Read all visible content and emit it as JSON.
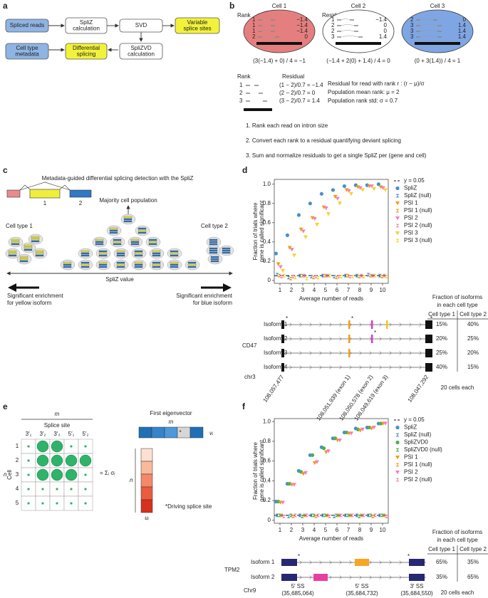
{
  "panel_a": {
    "label": "a",
    "boxes": [
      {
        "lines": [
          "Spliced reads"
        ]
      },
      {
        "lines": [
          "SpliZ",
          "calculation"
        ]
      },
      {
        "lines": [
          "SVD"
        ]
      },
      {
        "lines": [
          "Variable",
          "splice sites"
        ]
      },
      {
        "lines": [
          "Cell type",
          "metadata"
        ]
      },
      {
        "lines": [
          "Differential",
          "splicing"
        ]
      },
      {
        "lines": [
          "SpliZVD",
          "calculation"
        ]
      }
    ]
  },
  "panel_b": {
    "label": "b",
    "rank_heading": "Rank",
    "residual_heading": "Residual",
    "cells": [
      {
        "name": "Cell 1",
        "ranks": [
          1,
          1,
          1,
          2
        ],
        "residuals": [
          "−1.4",
          "−1.4",
          "−1.4",
          "0"
        ],
        "formula": "(3(−1.4) + 0) / 4 = −1"
      },
      {
        "name": "Cell 2",
        "ranks": [
          1,
          2,
          2,
          3
        ],
        "residuals": [
          "−1.4",
          "0",
          "0",
          "1.4"
        ],
        "formula": "(−1.4 + 2(0) + 1.4) / 4 = 0"
      },
      {
        "name": "Cell 3",
        "ranks": [
          2,
          3,
          3,
          3
        ],
        "residuals": [
          "0",
          "1.4",
          "1.4",
          "1.4"
        ],
        "formula": "(0 + 3(1.4)) / 4 = 1"
      }
    ],
    "example": {
      "rank_heading": "Rank",
      "residual_heading": "Residual",
      "ranks": [
        1,
        2,
        3
      ],
      "residuals": [
        "(1 − 2)/0.7 = −1.4",
        "(2 − 2)/0.7 = 0",
        "(3 − 2)/0.7 = 1.4"
      ],
      "notes": [
        "Residual for read with rank r : (r − μ)/σ",
        "Population mean rank: μ = 2",
        "Population rank std: σ = 0.7"
      ]
    },
    "steps": [
      "1. Rank each read on intron size",
      "2. Convert each rank to a residual quantifying deviant splicing",
      "3. Sum and normalize residuals to get a single SpliZ per (gene and cell)"
    ]
  },
  "panel_c": {
    "label": "c",
    "title": "Metadata-guided differential splicing detection with the SpliZ",
    "exon_labels": [
      "1",
      "2"
    ],
    "majority": "Majority cell population",
    "cell_type_1": "Cell type 1",
    "cell_type_2": "Cell type 2",
    "axis": "SpliZ value",
    "left_note": [
      "Significant enrichment",
      "for yellow isoform"
    ],
    "right_note": [
      "Significant enrichment",
      "for blue isoform"
    ]
  },
  "chart_data": [
    {
      "type": "scatter",
      "label": "d",
      "xlabel": "Average number of reads",
      "ylabel": [
        "Fraction of trials where",
        "gene is called significant"
      ],
      "x": [
        1,
        2,
        3,
        4,
        5,
        6,
        7,
        8,
        9,
        10
      ],
      "xlim": [
        0.5,
        10.5
      ],
      "xticks": [
        1,
        2,
        3,
        4,
        5,
        6,
        7,
        8,
        9,
        10
      ],
      "ylim": [
        -0.03,
        1.05
      ],
      "yticks": [
        0,
        0.2,
        0.4,
        0.6,
        0.8,
        {
          "value": 1,
          "label": "1.0"
        }
      ],
      "hline": {
        "value": 0.05,
        "label": "y = 0.05"
      },
      "legend": "right",
      "series": [
        {
          "name": "SpliZ",
          "color": "#4a8fcb",
          "marker": "circle",
          "values": [
            0.28,
            0.47,
            0.68,
            0.8,
            0.9,
            0.94,
            0.98,
            0.99,
            0.99,
            1.0
          ]
        },
        {
          "name": "SpliZ (null)",
          "color": "#4a8fcb",
          "marker": "x",
          "values": [
            0.06,
            0.03,
            0.05,
            0.04,
            0.05,
            0.04,
            0.05,
            0.05,
            0.06,
            0.05
          ]
        },
        {
          "name": "PSI 1",
          "color": "#f39c12",
          "marker": "triangle",
          "values": [
            0.17,
            0.34,
            0.53,
            0.65,
            0.76,
            0.87,
            0.94,
            0.97,
            0.98,
            0.97
          ]
        },
        {
          "name": "PSI 1 (null)",
          "color": "#f39c12",
          "marker": "x",
          "values": [
            0.05,
            0.02,
            0.05,
            0.03,
            0.05,
            0.03,
            0.05,
            0.04,
            0.05,
            0.04
          ]
        },
        {
          "name": "PSI 2",
          "color": "#f27fbf",
          "marker": "triangle",
          "values": [
            0.14,
            0.32,
            0.51,
            0.64,
            0.75,
            0.85,
            0.93,
            0.96,
            0.98,
            0.96
          ]
        },
        {
          "name": "PSI 2 (null)",
          "color": "#f27fbf",
          "marker": "x",
          "values": [
            0.04,
            0.04,
            0.05,
            0.04,
            0.05,
            0.04,
            0.04,
            0.05,
            0.05,
            0.05
          ]
        },
        {
          "name": "PSI 3",
          "color": "#f5d327",
          "marker": "triangle",
          "values": [
            0.1,
            0.26,
            0.45,
            0.58,
            0.69,
            0.8,
            0.9,
            0.94,
            0.95,
            0.94
          ]
        },
        {
          "name": "PSI 3 (null)",
          "color": "#f5d327",
          "marker": "x",
          "values": [
            0.05,
            0.03,
            0.02,
            0.03,
            0.05,
            0.04,
            0.04,
            0.04,
            0.05,
            0.04
          ]
        }
      ]
    },
    {
      "type": "scatter",
      "label": "f",
      "xlabel": "Average number of reads",
      "ylabel": [
        "Fraction of trials where",
        "gene is called significant"
      ],
      "x": [
        1,
        2,
        3,
        4,
        5,
        6,
        7,
        8,
        9,
        10
      ],
      "xlim": [
        0.5,
        10.5
      ],
      "xticks": [
        1,
        2,
        3,
        4,
        5,
        6,
        7,
        8,
        9,
        10
      ],
      "ylim": [
        -0.03,
        1.03
      ],
      "yticks": [
        0,
        0.2,
        0.4,
        0.6,
        0.8,
        {
          "value": 1,
          "label": "1.0"
        }
      ],
      "hline": {
        "value": 0.05,
        "label": "y = 0.05"
      },
      "legend": "right",
      "series": [
        {
          "name": "SpliZ",
          "color": "#4a8fcb",
          "marker": "circle",
          "values": [
            0.19,
            0.37,
            0.5,
            0.66,
            0.74,
            0.83,
            0.89,
            0.93,
            0.94,
            0.98
          ]
        },
        {
          "name": "SpliZ (null)",
          "color": "#4a8fcb",
          "marker": "x",
          "values": [
            0.05,
            0.04,
            0.05,
            0.05,
            0.05,
            0.04,
            0.05,
            0.05,
            0.05,
            0.05
          ]
        },
        {
          "name": "SpliZVD0",
          "color": "#4caf50",
          "marker": "circle",
          "values": [
            0.19,
            0.37,
            0.49,
            0.66,
            0.73,
            0.83,
            0.89,
            0.92,
            0.94,
            0.98
          ]
        },
        {
          "name": "SpliZVD0 (null)",
          "color": "#4caf50",
          "marker": "x",
          "values": [
            0.05,
            0.05,
            0.04,
            0.05,
            0.05,
            0.05,
            0.05,
            0.04,
            0.05,
            0.05
          ]
        },
        {
          "name": "PSI 1",
          "color": "#f39c12",
          "marker": "triangle",
          "values": [
            0.18,
            0.36,
            0.47,
            0.58,
            0.69,
            0.81,
            0.88,
            0.91,
            0.93,
            0.98
          ]
        },
        {
          "name": "PSI 1 (null)",
          "color": "#f39c12",
          "marker": "x",
          "values": [
            0.05,
            0.04,
            0.05,
            0.04,
            0.05,
            0.05,
            0.05,
            0.05,
            0.04,
            0.05
          ]
        },
        {
          "name": "PSI 2",
          "color": "#f27fbf",
          "marker": "triangle",
          "values": [
            0.18,
            0.36,
            0.48,
            0.59,
            0.7,
            0.81,
            0.88,
            0.92,
            0.94,
            0.98
          ]
        },
        {
          "name": "PSI 2 (null)",
          "color": "#f27fbf",
          "marker": "x",
          "values": [
            0.04,
            0.05,
            0.05,
            0.05,
            0.04,
            0.05,
            0.05,
            0.05,
            0.05,
            0.04
          ]
        }
      ]
    }
  ],
  "panel_d_isoforms": {
    "gene": "CD47",
    "chrom": "chr3",
    "isoforms": [
      "Isoform 1",
      "Isoform 2",
      "Isoform 3",
      "Isoform 4"
    ],
    "coordinates": [
      "108,057,477",
      "108,051,939 (exon 1)",
      "108,050,578 (exon 2)",
      "108,049,619 (exon 3)",
      "108,047,292"
    ],
    "table_heading": [
      "Fraction of isoforms",
      "in each cell type"
    ],
    "columns": [
      "Cell type 1",
      "Cell type 2"
    ],
    "rows": [
      [
        "15%",
        "40%"
      ],
      [
        "20%",
        "25%"
      ],
      [
        "25%",
        "20%"
      ],
      [
        "40%",
        "15%"
      ]
    ],
    "footnote": "20 cells each"
  },
  "panel_e": {
    "label": "e",
    "m": "m",
    "axis_label": "Splice site",
    "columns": [
      "3′₁",
      "3′₂",
      "3′₃",
      "5′₁",
      "5′₂"
    ],
    "n": "n",
    "row_axis": "Cell",
    "rows": [
      "1",
      "2",
      "3",
      "4",
      "5"
    ],
    "sum": "= Σᵢ σᵢ",
    "eigen_title": "First eigenvector",
    "v": "vᵢ",
    "u": "uᵢ",
    "star": "*",
    "note": "*Driving splice site"
  },
  "panel_f_isoforms": {
    "gene": "TPM2",
    "chrom": "Chr9",
    "isoforms": [
      "Isoform 1",
      "Isoform 2"
    ],
    "sites": [
      [
        "5′ SS",
        "(35,685,064)"
      ],
      [
        "5′ SS",
        "(35,684,732)"
      ],
      [
        "3′ SS",
        "(35,684,550)"
      ]
    ],
    "table_heading": [
      "Fraction of isoforms",
      "in each cell type"
    ],
    "columns": [
      "Cell type 1",
      "Cell type 2"
    ],
    "rows": [
      [
        "65%",
        "35%"
      ],
      [
        "35%",
        "65%"
      ]
    ],
    "footnote": "20 cells each"
  }
}
